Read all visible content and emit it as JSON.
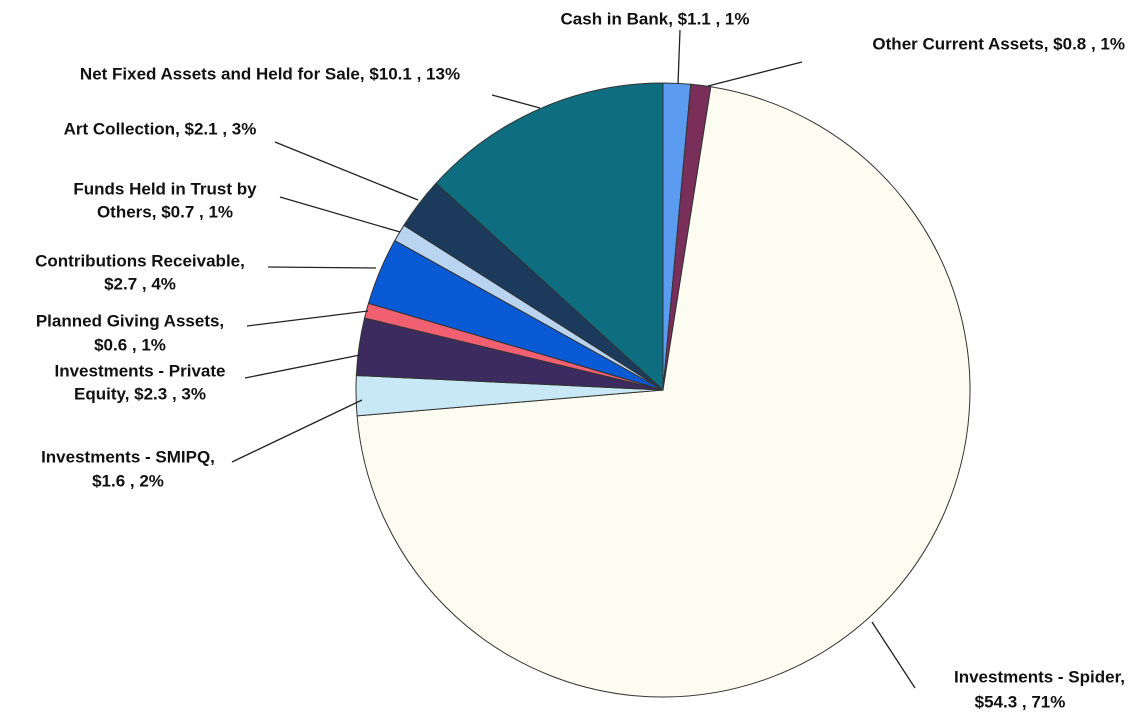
{
  "chart_data": {
    "type": "pie",
    "categories": [
      "Cash in Bank",
      "Other Current Assets",
      "Investments - Spider",
      "Investments - SMIPQ",
      "Investments - Private Equity",
      "Planned Giving Assets",
      "Contributions Receivable",
      "Funds Held in Trust by Others",
      "Art Collection",
      "Net Fixed Assets and Held for Sale"
    ],
    "values": [
      1.1,
      0.8,
      54.3,
      1.6,
      2.3,
      0.6,
      2.7,
      0.7,
      2.1,
      10.1
    ],
    "labels": [
      [
        "Cash in Bank,  $1.1 , 1%"
      ],
      [
        "Other Current Assets,  $0.8 , 1%"
      ],
      [
        "Investments - Spider,",
        "$54.3 , 71%"
      ],
      [
        "Investments - SMIPQ,",
        "$1.6 , 2%"
      ],
      [
        "Investments - Private",
        "Equity,  $2.3 , 3%"
      ],
      [
        "Planned Giving Assets,",
        "$0.6 , 1%"
      ],
      [
        "Contributions Receivable,",
        "$2.7 , 4%"
      ],
      [
        "Funds Held in Trust by",
        "Others,  $0.7 , 1%"
      ],
      [
        "Art Collection,  $2.1 , 3%"
      ],
      [
        "Net Fixed Assets and Held for Sale,  $10.1 , 13%"
      ]
    ],
    "colors": [
      "#5b9cf0",
      "#7a2f5a",
      "#fdfcf0",
      "#c8e8f5",
      "#3c2b5e",
      "#f06070",
      "#0a5ad6",
      "#b8d4f0",
      "#1b3a5c",
      "#0e6e80"
    ]
  }
}
